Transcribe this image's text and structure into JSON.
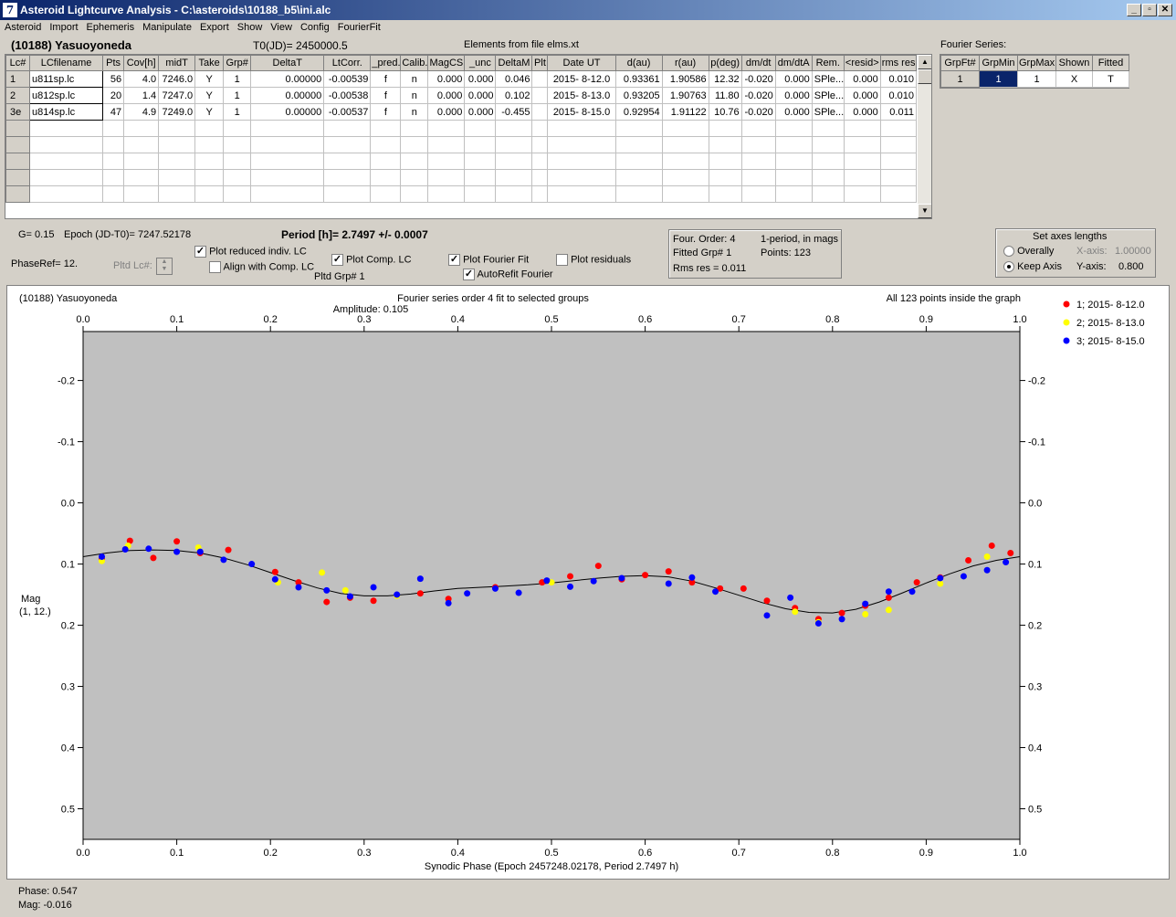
{
  "window": {
    "title": "Asteroid Lightcurve Analysis - C:\\asteroids\\10188_b5\\ini.alc",
    "icon_label": "7"
  },
  "menu": [
    "Asteroid",
    "Import",
    "Ephemeris",
    "Manipulate",
    "Export",
    "Show",
    "View",
    "Config",
    "FourierFit"
  ],
  "header": {
    "asteroid_name": "(10188) Yasuoyoneda",
    "t0": "T0(JD)= 2450000.5",
    "elements": "Elements from file elms.xt"
  },
  "lc_table": {
    "columns": [
      "Lc#",
      "LCfilename",
      "Pts",
      "Cov[h]",
      "midT",
      "Take",
      "Grp#",
      "DeltaT",
      "LtCorr.",
      "_pred.",
      "Calib.",
      "MagCS",
      "_unc",
      "DeltaM",
      "Plt",
      "Date UT",
      "d(au)",
      "r(au)",
      "p(deg)",
      "dm/dt",
      "dm/dtA",
      "Rem.",
      "<resid>",
      "rms res"
    ],
    "rows": [
      [
        "1",
        "u811sp.lc",
        "56",
        "4.0",
        "7246.0",
        "Y",
        "1",
        "0.00000",
        "-0.00539",
        "f",
        "n",
        "0.000",
        "0.000",
        "0.046",
        "",
        "2015- 8-12.0",
        "0.93361",
        "1.90586",
        "12.32",
        "-0.020",
        "0.000",
        "SPle...",
        "0.000",
        "0.010"
      ],
      [
        "2",
        "u812sp.lc",
        "20",
        "1.4",
        "7247.0",
        "Y",
        "1",
        "0.00000",
        "-0.00538",
        "f",
        "n",
        "0.000",
        "0.000",
        "0.102",
        "",
        "2015- 8-13.0",
        "0.93205",
        "1.90763",
        "11.80",
        "-0.020",
        "0.000",
        "SPle...",
        "0.000",
        "0.010"
      ],
      [
        "3e",
        "u814sp.lc",
        "47",
        "4.9",
        "7249.0",
        "Y",
        "1",
        "0.00000",
        "-0.00537",
        "f",
        "n",
        "0.000",
        "0.000",
        "-0.455",
        "",
        "2015- 8-15.0",
        "0.92954",
        "1.91122",
        "10.76",
        "-0.020",
        "0.000",
        "SPle...",
        "0.000",
        "0.011"
      ]
    ],
    "empty_rows": 5
  },
  "fourier_series": {
    "label": "Fourier Series:",
    "columns": [
      "GrpFt#",
      "GrpMin",
      "GrpMax",
      "Shown",
      "Fitted"
    ],
    "row": [
      "1",
      "1",
      "1",
      "X",
      "T"
    ]
  },
  "controls": {
    "g_label": "G= 0.15",
    "epoch_label": "Epoch (JD-T0)= 7247.52178",
    "period_label": "Period [h]= 2.7497 +/- 0.0007",
    "phaseref": "PhaseRef= 12.",
    "pltd_lc_label": "Pltd Lc#:",
    "pltd_grp": "Pltd Grp#  1",
    "plot_reduced": "Plot reduced indiv. LC",
    "align_comp": "Align with Comp. LC",
    "plot_comp": "Plot Comp. LC",
    "plot_fourier": "Plot Fourier Fit",
    "autorefit": "AutoRefit Fourier",
    "plot_residuals": "Plot residuals"
  },
  "info_box": {
    "four_order": "Four. Order:  4",
    "one_period": "1-period, in mags",
    "fitted_grp": "Fitted Grp# 1",
    "points": "Points: 123",
    "rms": "Rms res     = 0.011"
  },
  "axes_box": {
    "title": "Set axes lengths",
    "overally": "Overally",
    "keep_axis": "Keep Axis",
    "x_axis_label": "X-axis:",
    "x_axis_value": "1.00000",
    "y_axis_label": "Y-axis:",
    "y_axis_value": "0.800"
  },
  "plot": {
    "corner_title": "(10188) Yasuoyoneda",
    "subtitle": "Fourier series order 4 fit to selected groups",
    "amplitude": "Amplitude: 0.105",
    "points_note": "All 123 points inside the graph",
    "ylabel": "Mag",
    "ylabel2": "(1, 12.)",
    "xlabel": "Synodic Phase (Epoch 2457248.02178, Period 2.7497 h)"
  },
  "status": {
    "phase": "Phase:  0.547",
    "mag": "Mag:   -0.016"
  },
  "colors": {
    "series1": "#ff0000",
    "series2": "#ffff00",
    "series3": "#0000ff",
    "plot_bg": "#c0c0c0",
    "selected_cell": "#0a246a"
  },
  "chart_data": {
    "type": "scatter",
    "x_range": [
      0.0,
      1.0
    ],
    "y_range": [
      0.55,
      -0.28
    ],
    "y_inverted": true,
    "x_ticks": [
      "0.0",
      "0.1",
      "0.2",
      "0.3",
      "0.4",
      "0.5",
      "0.6",
      "0.7",
      "0.8",
      "0.9",
      "1.0"
    ],
    "y_ticks": [
      "-0.2",
      "-0.1",
      "0.0",
      "0.1",
      "0.2",
      "0.3",
      "0.4",
      "0.5"
    ],
    "y_tick_values": [
      -0.2,
      -0.1,
      0.0,
      0.1,
      0.2,
      0.3,
      0.4,
      0.5
    ],
    "legend": [
      "1; 2015- 8-12.0",
      "2; 2015- 8-13.0",
      "3; 2015- 8-15.0"
    ],
    "fit_curve": {
      "x": [
        0.0,
        0.025,
        0.05,
        0.075,
        0.1,
        0.125,
        0.15,
        0.175,
        0.2,
        0.225,
        0.25,
        0.275,
        0.3,
        0.325,
        0.35,
        0.375,
        0.4,
        0.425,
        0.45,
        0.475,
        0.5,
        0.525,
        0.55,
        0.575,
        0.6,
        0.625,
        0.65,
        0.675,
        0.7,
        0.725,
        0.75,
        0.775,
        0.8,
        0.825,
        0.85,
        0.875,
        0.9,
        0.925,
        0.95,
        0.975,
        1.0
      ],
      "y": [
        0.088,
        0.082,
        0.078,
        0.077,
        0.078,
        0.082,
        0.09,
        0.101,
        0.114,
        0.127,
        0.139,
        0.148,
        0.152,
        0.152,
        0.149,
        0.144,
        0.14,
        0.138,
        0.136,
        0.134,
        0.131,
        0.127,
        0.123,
        0.12,
        0.119,
        0.121,
        0.128,
        0.139,
        0.151,
        0.163,
        0.173,
        0.179,
        0.18,
        0.174,
        0.162,
        0.147,
        0.131,
        0.116,
        0.103,
        0.094,
        0.088
      ]
    },
    "series": [
      {
        "name": "1; 2015- 8-12.0",
        "x": [
          0.02,
          0.05,
          0.075,
          0.1,
          0.125,
          0.155,
          0.205,
          0.23,
          0.26,
          0.285,
          0.31,
          0.36,
          0.39,
          0.44,
          0.49,
          0.52,
          0.55,
          0.575,
          0.6,
          0.625,
          0.65,
          0.68,
          0.705,
          0.73,
          0.76,
          0.785,
          0.81,
          0.835,
          0.86,
          0.89,
          0.915,
          0.945,
          0.97,
          0.99
        ],
        "y": [
          0.092,
          0.062,
          0.09,
          0.063,
          0.082,
          0.077,
          0.113,
          0.13,
          0.162,
          0.155,
          0.16,
          0.148,
          0.157,
          0.138,
          0.13,
          0.12,
          0.103,
          0.125,
          0.118,
          0.112,
          0.13,
          0.14,
          0.14,
          0.16,
          0.172,
          0.19,
          0.18,
          0.168,
          0.155,
          0.13,
          0.122,
          0.094,
          0.07,
          0.082
        ]
      },
      {
        "name": "2; 2015- 8-13.0",
        "x": [
          0.02,
          0.048,
          0.123,
          0.208,
          0.255,
          0.28,
          0.335,
          0.5,
          0.76,
          0.785,
          0.835,
          0.86,
          0.915,
          0.965
        ],
        "y": [
          0.095,
          0.07,
          0.073,
          0.13,
          0.114,
          0.143,
          0.152,
          0.13,
          0.178,
          0.195,
          0.182,
          0.175,
          0.132,
          0.088
        ]
      },
      {
        "name": "3; 2015- 8-15.0",
        "x": [
          0.02,
          0.045,
          0.07,
          0.1,
          0.125,
          0.15,
          0.18,
          0.205,
          0.23,
          0.26,
          0.285,
          0.31,
          0.335,
          0.36,
          0.39,
          0.41,
          0.44,
          0.465,
          0.495,
          0.52,
          0.545,
          0.575,
          0.625,
          0.65,
          0.675,
          0.73,
          0.755,
          0.785,
          0.81,
          0.835,
          0.86,
          0.885,
          0.915,
          0.94,
          0.965,
          0.985
        ],
        "y": [
          0.088,
          0.076,
          0.075,
          0.08,
          0.08,
          0.093,
          0.1,
          0.125,
          0.138,
          0.143,
          0.153,
          0.138,
          0.15,
          0.124,
          0.164,
          0.148,
          0.14,
          0.147,
          0.127,
          0.137,
          0.128,
          0.123,
          0.132,
          0.122,
          0.145,
          0.184,
          0.155,
          0.197,
          0.19,
          0.165,
          0.145,
          0.145,
          0.123,
          0.12,
          0.11,
          0.097
        ]
      }
    ]
  }
}
